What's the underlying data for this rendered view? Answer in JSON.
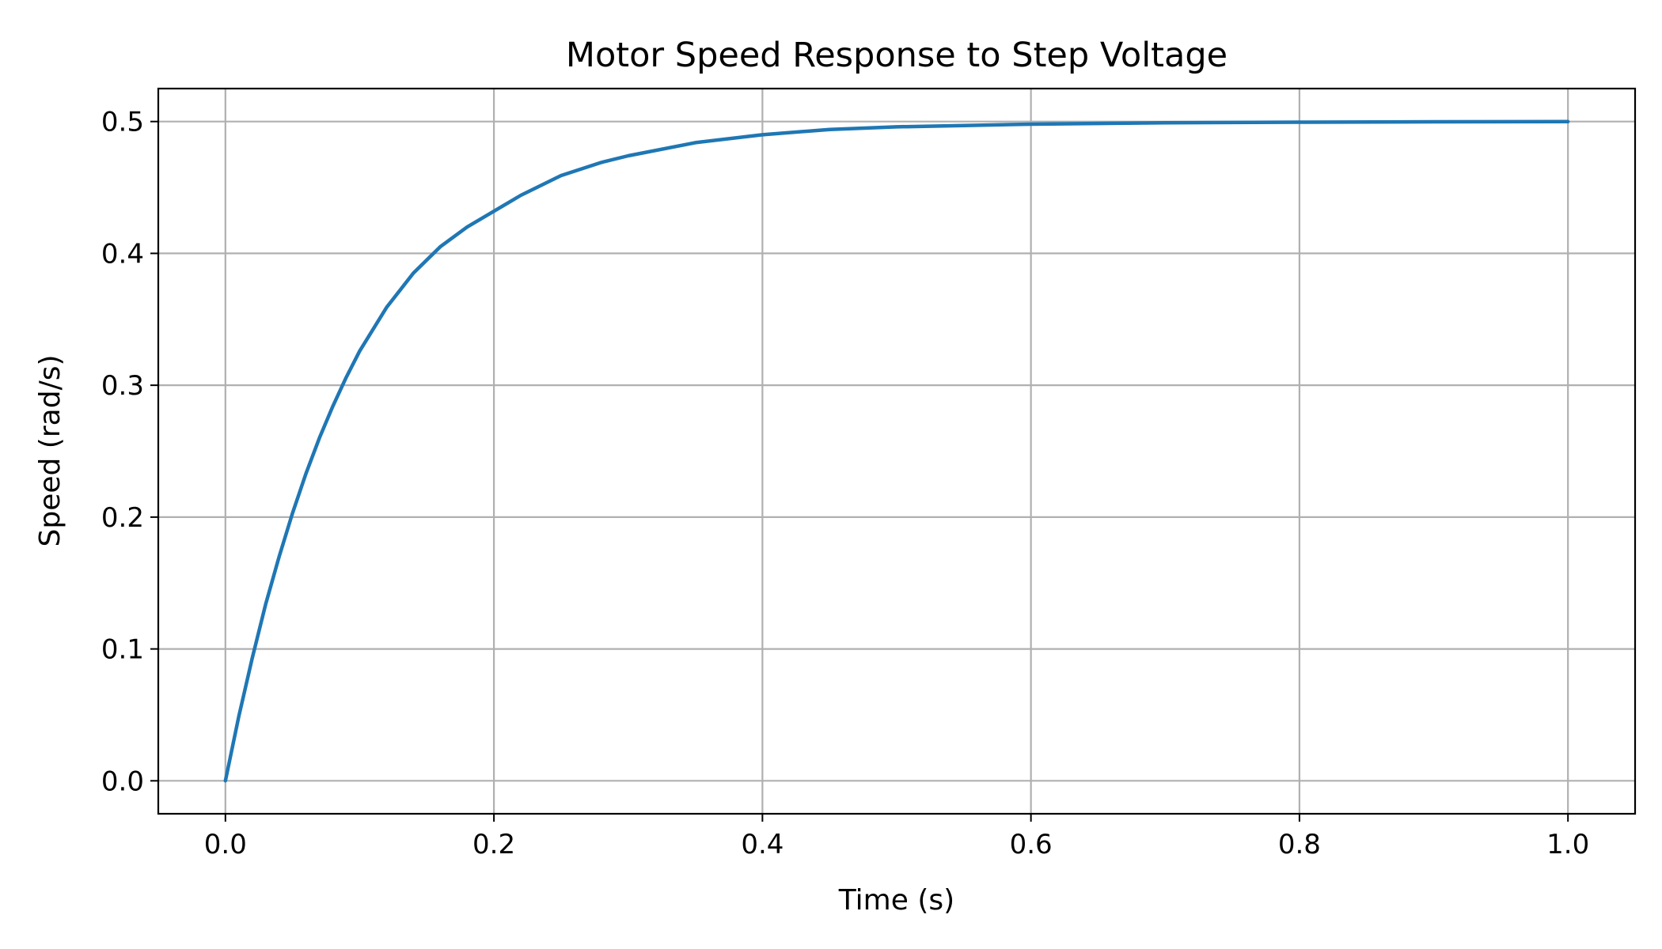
{
  "chart_data": {
    "type": "line",
    "title": "Motor Speed Response to Step Voltage",
    "xlabel": "Time (s)",
    "ylabel": "Speed (rad/s)",
    "xlim": [
      -0.05,
      1.05
    ],
    "ylim": [
      -0.025,
      0.525
    ],
    "xticks": [
      0.0,
      0.2,
      0.4,
      0.6,
      0.8,
      1.0
    ],
    "xtick_labels": [
      "0.0",
      "0.2",
      "0.4",
      "0.6",
      "0.8",
      "1.0"
    ],
    "yticks": [
      0.0,
      0.1,
      0.2,
      0.3,
      0.4,
      0.5
    ],
    "ytick_labels": [
      "0.0",
      "0.1",
      "0.2",
      "0.3",
      "0.4",
      "0.5"
    ],
    "grid": true,
    "legend": "none",
    "colors": {
      "series": "#1f77b4",
      "grid": "#b0b0b0",
      "axes": "#000000"
    },
    "series": [
      {
        "x": [
          0.0,
          0.01,
          0.02,
          0.03,
          0.04,
          0.05,
          0.06,
          0.07,
          0.08,
          0.09,
          0.1,
          0.12,
          0.14,
          0.16,
          0.18,
          0.2,
          0.22,
          0.25,
          0.28,
          0.3,
          0.35,
          0.4,
          0.45,
          0.5,
          0.55,
          0.6,
          0.7,
          0.8,
          0.9,
          1.0
        ],
        "y": [
          0.0,
          0.049,
          0.093,
          0.134,
          0.17,
          0.203,
          0.233,
          0.26,
          0.284,
          0.306,
          0.326,
          0.359,
          0.385,
          0.405,
          0.42,
          0.432,
          0.444,
          0.459,
          0.469,
          0.474,
          0.484,
          0.49,
          0.494,
          0.496,
          0.497,
          0.498,
          0.499,
          0.4995,
          0.4998,
          0.4999
        ]
      }
    ]
  }
}
